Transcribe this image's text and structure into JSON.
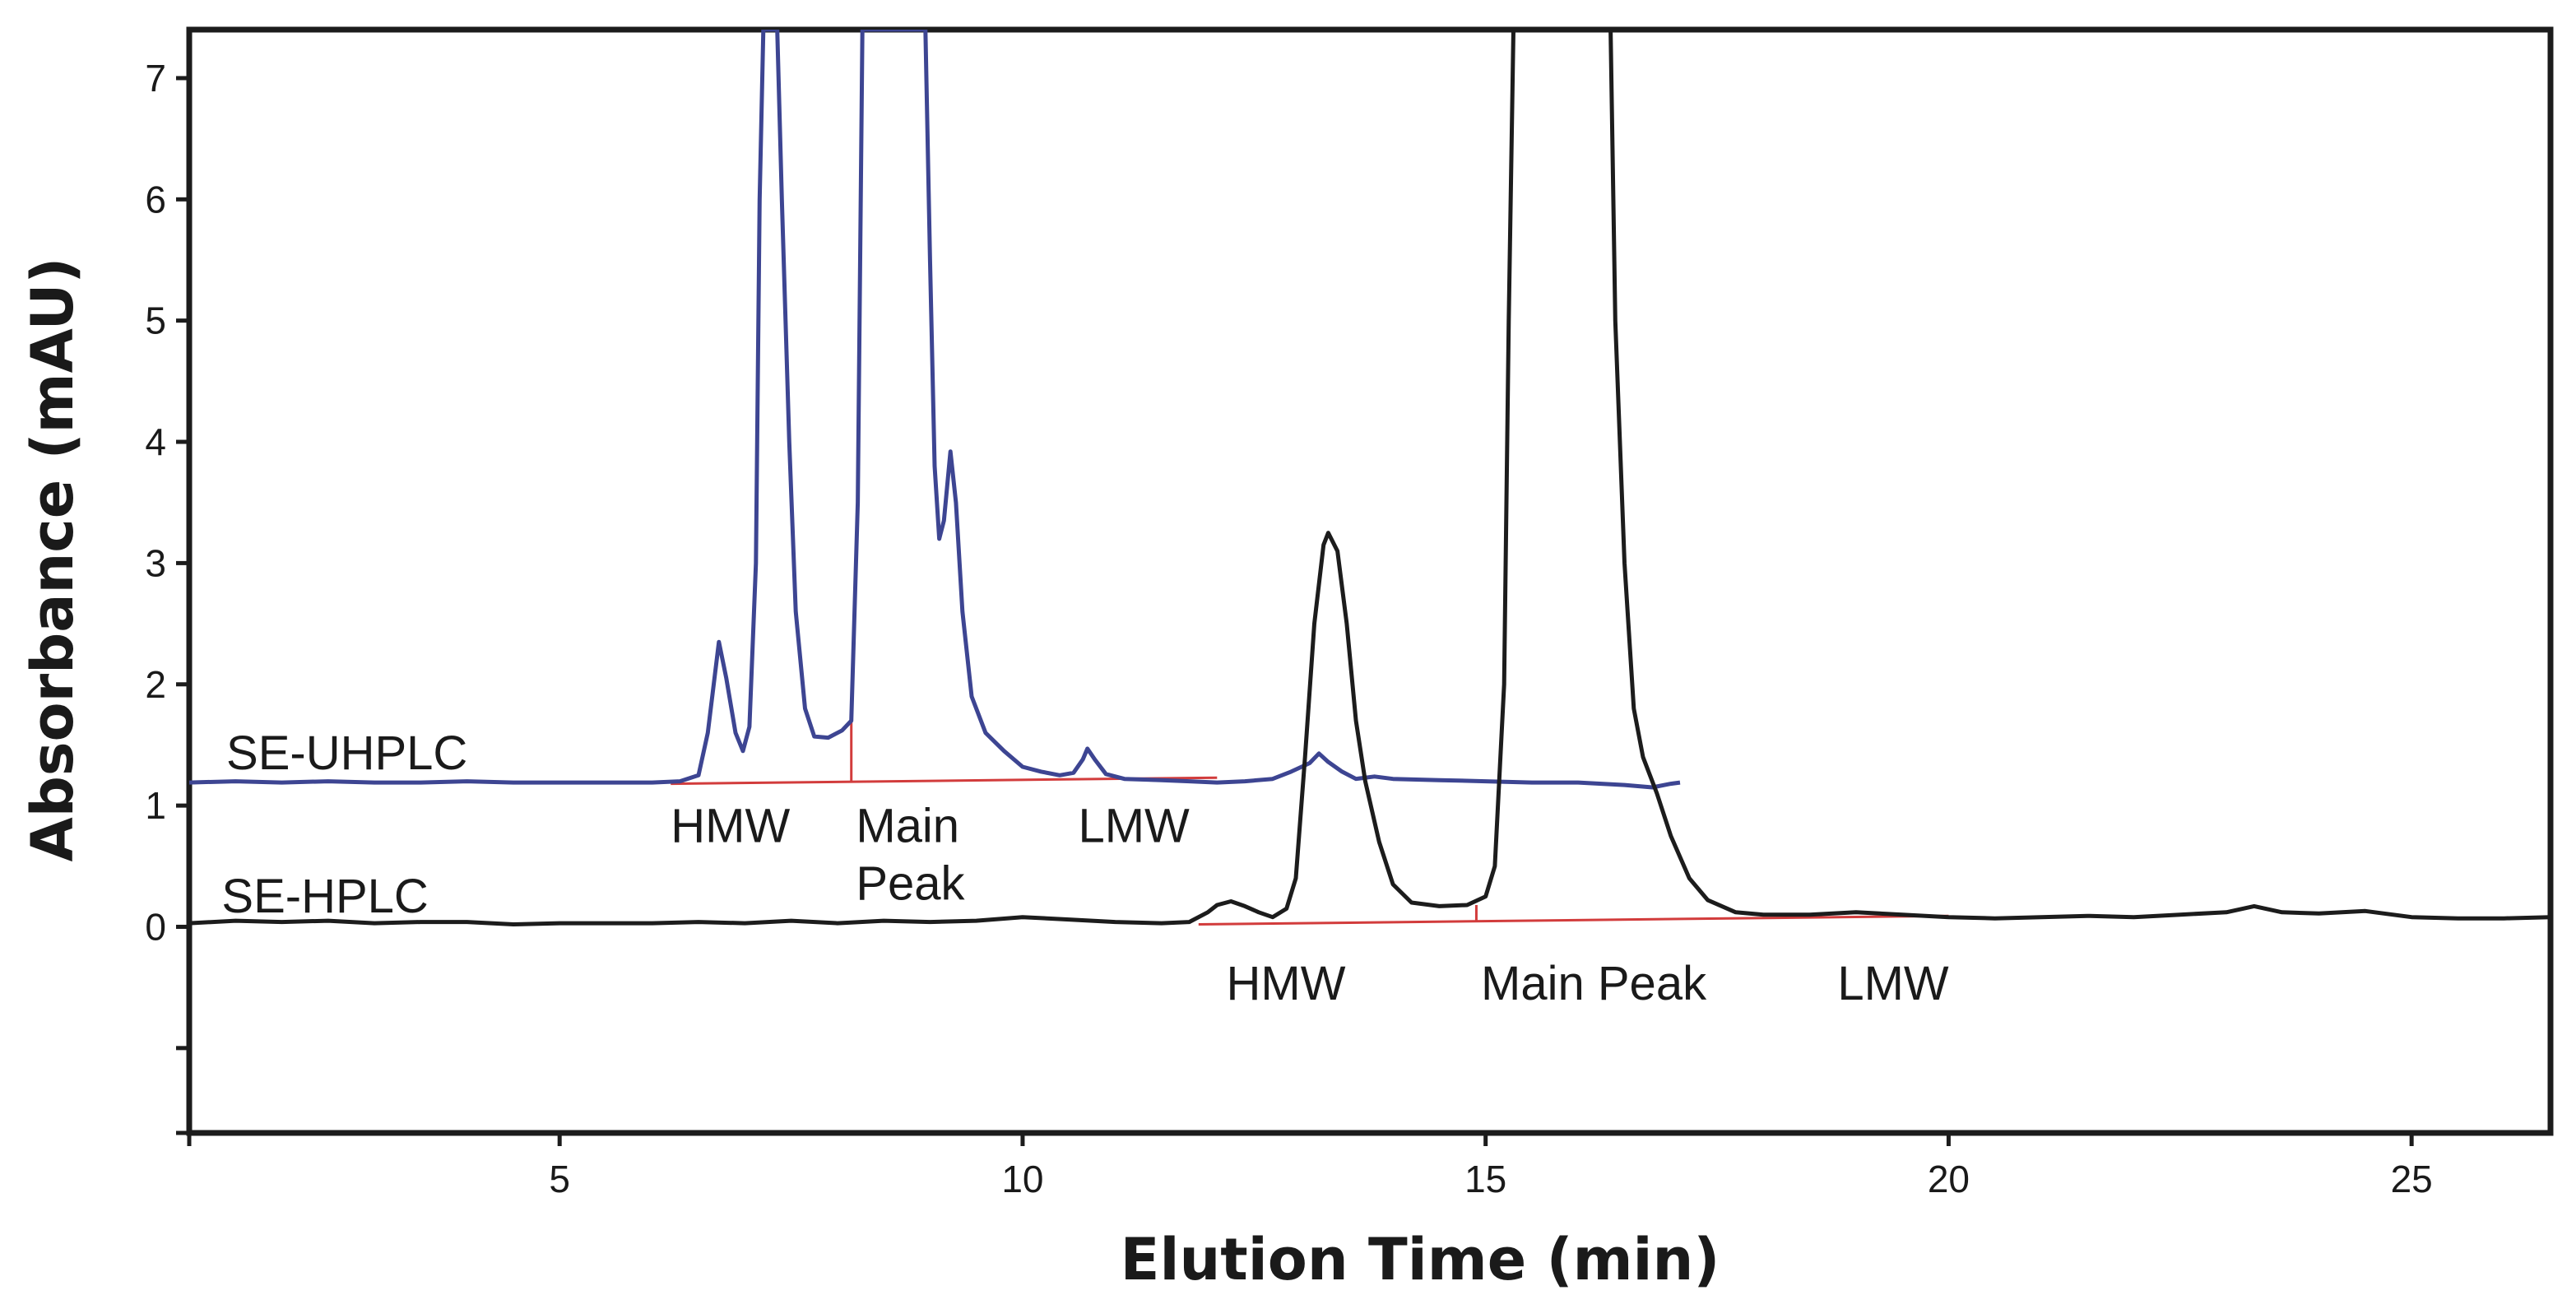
{
  "chart_data": {
    "type": "line",
    "xlabel": "Elution Time (min)",
    "ylabel": "Absorbance (mAU)",
    "xlim": [
      1,
      26.5
    ],
    "ylim": [
      -1.7,
      7.4
    ],
    "x_ticks": [
      5,
      10,
      15,
      20,
      25
    ],
    "y_ticks": [
      0,
      1,
      2,
      3,
      4,
      5,
      6,
      7
    ],
    "y_minor_ticks": [
      -1,
      -1.7
    ],
    "grid": false,
    "legend": "none",
    "colors": {
      "uhplc": "#3d4592",
      "hplc": "#1c1c1c",
      "baseline": "#d23c3c",
      "axis": "#1c1c1c"
    },
    "series": [
      {
        "name": "SE-UHPLC",
        "color": "#3d4592",
        "points": [
          [
            1.0,
            1.19
          ],
          [
            1.5,
            1.2
          ],
          [
            2.0,
            1.19
          ],
          [
            2.5,
            1.2
          ],
          [
            3.0,
            1.19
          ],
          [
            3.5,
            1.19
          ],
          [
            4.0,
            1.2
          ],
          [
            4.5,
            1.19
          ],
          [
            5.0,
            1.19
          ],
          [
            5.5,
            1.19
          ],
          [
            6.0,
            1.19
          ],
          [
            6.3,
            1.2
          ],
          [
            6.5,
            1.25
          ],
          [
            6.6,
            1.6
          ],
          [
            6.68,
            2.1
          ],
          [
            6.72,
            2.35
          ],
          [
            6.8,
            2.05
          ],
          [
            6.9,
            1.6
          ],
          [
            6.98,
            1.45
          ],
          [
            7.05,
            1.65
          ],
          [
            7.12,
            3.0
          ],
          [
            7.16,
            6.0
          ],
          [
            7.2,
            7.4
          ],
          [
            7.35,
            7.4
          ],
          [
            7.4,
            6.0
          ],
          [
            7.48,
            4.0
          ],
          [
            7.55,
            2.6
          ],
          [
            7.65,
            1.8
          ],
          [
            7.75,
            1.57
          ],
          [
            7.9,
            1.56
          ],
          [
            8.05,
            1.62
          ],
          [
            8.15,
            1.7
          ],
          [
            8.22,
            3.5
          ],
          [
            8.27,
            7.4
          ],
          [
            8.95,
            7.4
          ],
          [
            9.0,
            5.5
          ],
          [
            9.05,
            3.8
          ],
          [
            9.1,
            3.2
          ],
          [
            9.15,
            3.35
          ],
          [
            9.22,
            3.92
          ],
          [
            9.28,
            3.5
          ],
          [
            9.35,
            2.6
          ],
          [
            9.45,
            1.9
          ],
          [
            9.6,
            1.6
          ],
          [
            9.8,
            1.45
          ],
          [
            10.0,
            1.32
          ],
          [
            10.2,
            1.28
          ],
          [
            10.4,
            1.25
          ],
          [
            10.55,
            1.27
          ],
          [
            10.65,
            1.38
          ],
          [
            10.7,
            1.47
          ],
          [
            10.78,
            1.38
          ],
          [
            10.9,
            1.26
          ],
          [
            11.1,
            1.22
          ],
          [
            11.5,
            1.21
          ],
          [
            11.8,
            1.2
          ],
          [
            12.1,
            1.19
          ],
          [
            12.4,
            1.2
          ],
          [
            12.7,
            1.22
          ],
          [
            12.9,
            1.28
          ],
          [
            13.1,
            1.35
          ],
          [
            13.2,
            1.43
          ],
          [
            13.3,
            1.36
          ],
          [
            13.45,
            1.28
          ],
          [
            13.6,
            1.22
          ],
          [
            13.8,
            1.24
          ],
          [
            14.0,
            1.22
          ],
          [
            14.5,
            1.21
          ],
          [
            15.0,
            1.2
          ],
          [
            15.5,
            1.19
          ],
          [
            16.0,
            1.19
          ],
          [
            16.5,
            1.17
          ],
          [
            16.8,
            1.15
          ],
          [
            17.0,
            1.18
          ],
          [
            17.1,
            1.19
          ]
        ]
      },
      {
        "name": "SE-HPLC",
        "color": "#1c1c1c",
        "points": [
          [
            1.0,
            0.03
          ],
          [
            1.5,
            0.05
          ],
          [
            2.0,
            0.04
          ],
          [
            2.5,
            0.05
          ],
          [
            3.0,
            0.03
          ],
          [
            3.5,
            0.04
          ],
          [
            4.0,
            0.04
          ],
          [
            4.5,
            0.02
          ],
          [
            5.0,
            0.03
          ],
          [
            5.5,
            0.03
          ],
          [
            6.0,
            0.03
          ],
          [
            6.5,
            0.04
          ],
          [
            7.0,
            0.03
          ],
          [
            7.5,
            0.05
          ],
          [
            8.0,
            0.03
          ],
          [
            8.5,
            0.05
          ],
          [
            9.0,
            0.04
          ],
          [
            9.5,
            0.05
          ],
          [
            10.0,
            0.08
          ],
          [
            10.5,
            0.06
          ],
          [
            11.0,
            0.04
          ],
          [
            11.5,
            0.03
          ],
          [
            11.8,
            0.04
          ],
          [
            12.0,
            0.12
          ],
          [
            12.1,
            0.18
          ],
          [
            12.25,
            0.21
          ],
          [
            12.4,
            0.17
          ],
          [
            12.55,
            0.12
          ],
          [
            12.7,
            0.08
          ],
          [
            12.85,
            0.15
          ],
          [
            12.95,
            0.4
          ],
          [
            13.05,
            1.4
          ],
          [
            13.15,
            2.5
          ],
          [
            13.25,
            3.15
          ],
          [
            13.3,
            3.25
          ],
          [
            13.4,
            3.1
          ],
          [
            13.5,
            2.5
          ],
          [
            13.6,
            1.7
          ],
          [
            13.7,
            1.2
          ],
          [
            13.85,
            0.7
          ],
          [
            14.0,
            0.35
          ],
          [
            14.2,
            0.2
          ],
          [
            14.5,
            0.17
          ],
          [
            14.8,
            0.18
          ],
          [
            15.0,
            0.25
          ],
          [
            15.1,
            0.5
          ],
          [
            15.2,
            2.0
          ],
          [
            15.25,
            5.0
          ],
          [
            15.3,
            7.4
          ],
          [
            16.35,
            7.4
          ],
          [
            16.4,
            5.0
          ],
          [
            16.5,
            3.0
          ],
          [
            16.6,
            1.8
          ],
          [
            16.7,
            1.4
          ],
          [
            16.85,
            1.1
          ],
          [
            17.0,
            0.75
          ],
          [
            17.2,
            0.4
          ],
          [
            17.4,
            0.22
          ],
          [
            17.7,
            0.12
          ],
          [
            18.0,
            0.1
          ],
          [
            18.5,
            0.1
          ],
          [
            19.0,
            0.12
          ],
          [
            19.5,
            0.1
          ],
          [
            20.0,
            0.08
          ],
          [
            20.5,
            0.07
          ],
          [
            21.0,
            0.08
          ],
          [
            21.5,
            0.09
          ],
          [
            22.0,
            0.08
          ],
          [
            22.5,
            0.1
          ],
          [
            23.0,
            0.12
          ],
          [
            23.3,
            0.17
          ],
          [
            23.6,
            0.12
          ],
          [
            24.0,
            0.11
          ],
          [
            24.5,
            0.13
          ],
          [
            25.0,
            0.08
          ],
          [
            25.5,
            0.07
          ],
          [
            26.0,
            0.07
          ],
          [
            26.5,
            0.08
          ]
        ]
      }
    ],
    "baselines": [
      {
        "from": [
          6.2,
          1.18
        ],
        "to": [
          12.1,
          1.23
        ],
        "drops": [
          [
            8.15,
            1.7
          ]
        ]
      },
      {
        "from": [
          11.9,
          0.02
        ],
        "to": [
          20.0,
          0.09
        ],
        "drops": [
          [
            14.9,
            0.18
          ]
        ]
      }
    ],
    "annotations": {
      "uhplc_label": {
        "text": "SE-UHPLC",
        "x": 1.4,
        "y": 1.3
      },
      "hplc_label": {
        "text": "SE-HPLC",
        "x": 1.35,
        "y": 0.12
      },
      "uhplc_regions": [
        {
          "lines": [
            "HMW"
          ],
          "x": 6.2,
          "y": 0.7
        },
        {
          "lines": [
            "Main",
            "Peak"
          ],
          "x": 8.2,
          "y": 0.7
        },
        {
          "lines": [
            "LMW"
          ],
          "x": 10.6,
          "y": 0.7
        }
      ],
      "hplc_regions": [
        {
          "lines": [
            "HMW"
          ],
          "x": 12.2,
          "y": -0.6
        },
        {
          "lines": [
            "Main Peak"
          ],
          "x": 14.95,
          "y": -0.6
        },
        {
          "lines": [
            "LMW"
          ],
          "x": 18.8,
          "y": -0.6
        }
      ]
    }
  }
}
